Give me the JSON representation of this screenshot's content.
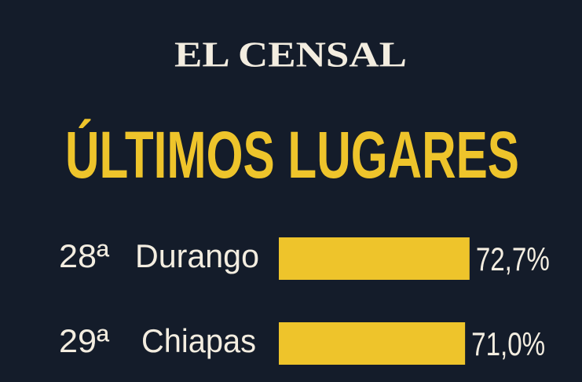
{
  "chart_data": {
    "type": "bar",
    "header": "EL CENSAL",
    "title": "ÚLTIMOS LUGARES",
    "ranks": [
      "28ª",
      "29ª"
    ],
    "categories": [
      "Durango",
      "Chiapas"
    ],
    "values": [
      72.7,
      71.0
    ],
    "value_labels": [
      "72,7%",
      "71,0%"
    ],
    "color": "#eec42b"
  }
}
